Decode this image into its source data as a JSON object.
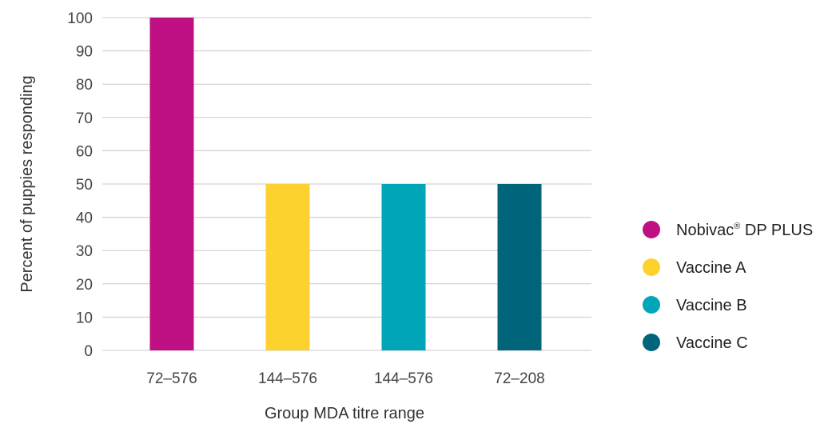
{
  "chart_data": {
    "type": "bar",
    "title": "",
    "xlabel": "Group MDA titre range",
    "ylabel": "Percent of puppies responding",
    "ylim": [
      0,
      100
    ],
    "yticks": [
      0,
      10,
      20,
      30,
      40,
      50,
      60,
      70,
      80,
      90,
      100
    ],
    "categories": [
      "72–576",
      "144–576",
      "144–576",
      "72–208"
    ],
    "values": [
      100,
      50,
      50,
      50
    ],
    "grid": true,
    "legend_position": "right",
    "legend": [
      {
        "name": "Nobivac",
        "superscript": "®",
        "suffix": " DP PLUS",
        "color": "#be1082"
      },
      {
        "name": "Vaccine A",
        "color": "#fdd22e"
      },
      {
        "name": "Vaccine B",
        "color": "#00a6b8"
      },
      {
        "name": "Vaccine C",
        "color": "#00657b"
      }
    ],
    "bar_colors": [
      "#be1082",
      "#fdd22e",
      "#00a6b8",
      "#00657b"
    ],
    "grid_color": "#c8c8c8"
  }
}
